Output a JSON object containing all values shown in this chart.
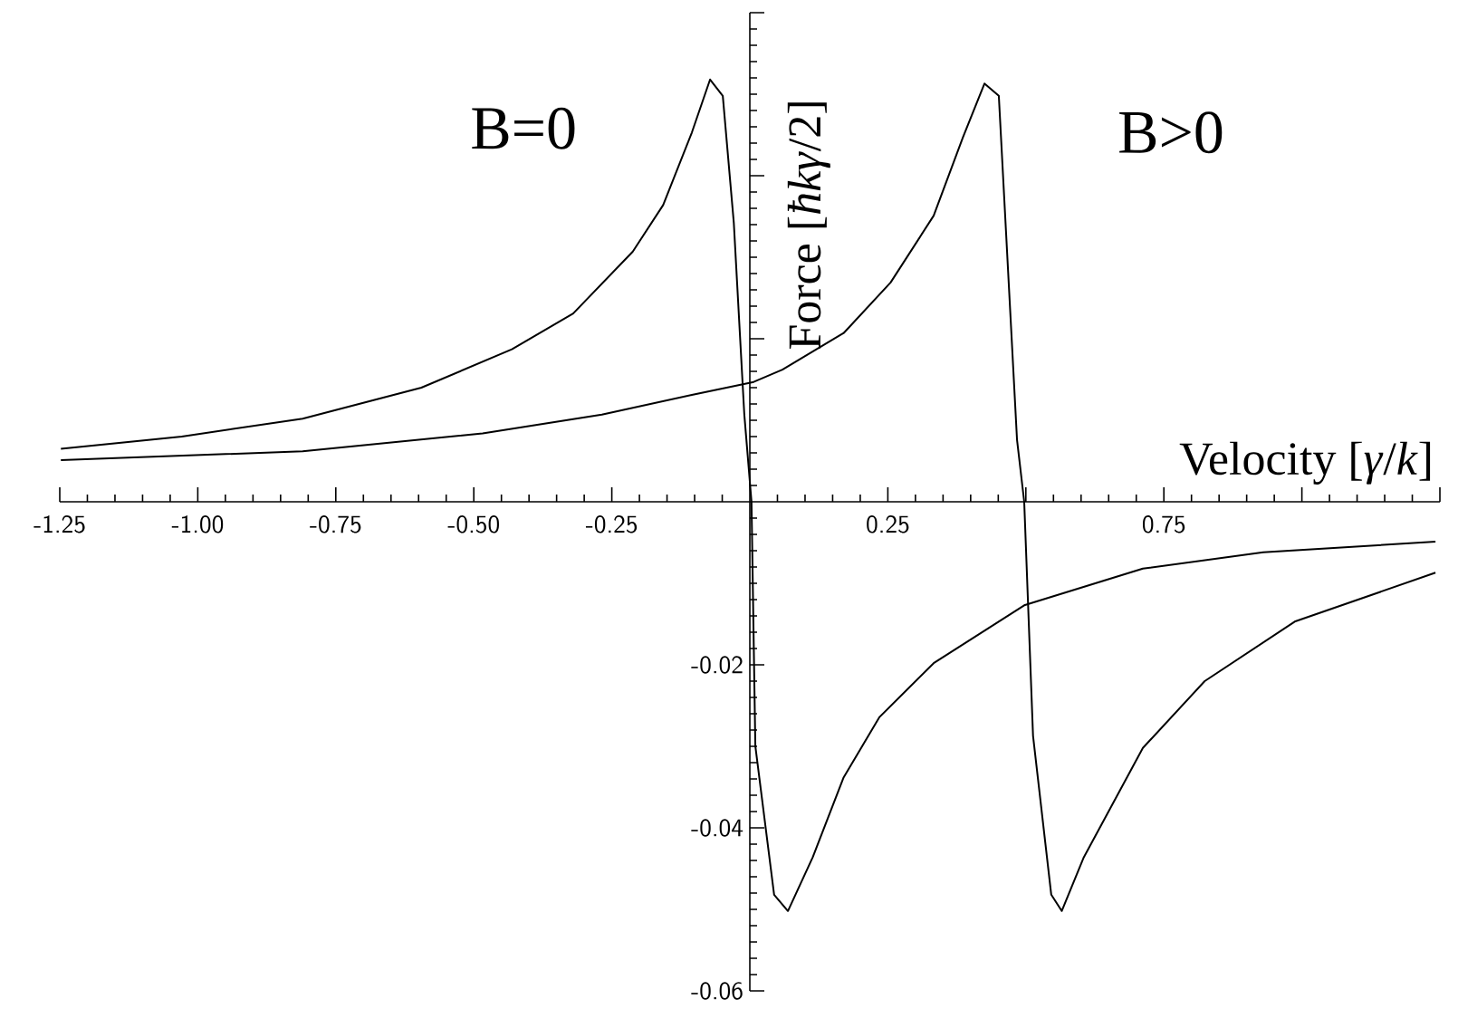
{
  "chart_data": {
    "type": "line",
    "xlabel": "Velocity [*γ*/*k*]",
    "ylabel": "Force [*ħkγ*/2]",
    "xlim": [
      -1.25,
      1.25
    ],
    "ylim": [
      -0.06,
      0.06
    ],
    "xticks": [
      -1.25,
      {
        "value": -1,
        "label": "-1.00"
      },
      -0.75,
      {
        "value": -0.5,
        "label": "-0.50"
      },
      -0.25,
      {
        "value": 0,
        "label": null
      },
      0.25,
      {
        "value": 0.5,
        "label": null
      },
      0.75,
      {
        "value": 1,
        "label": null
      },
      {
        "value": 1.25,
        "label": null
      }
    ],
    "yticks": [
      -0.06,
      -0.04,
      -0.02,
      {
        "value": 0,
        "label": null
      },
      {
        "value": 0.02,
        "label": null
      },
      {
        "value": 0.04,
        "label": null
      },
      {
        "value": 0.06,
        "label": null
      }
    ],
    "series": [
      {
        "name": "B=0",
        "color": "#000000",
        "x": [
          -1.248,
          -1.029,
          -0.81,
          -0.595,
          -0.431,
          -0.32,
          -0.212,
          -0.157,
          -0.105,
          -0.072,
          -0.049,
          -0.029,
          -0.01,
          0.003,
          0.01,
          0.044,
          0.069,
          0.114,
          0.17,
          0.235,
          0.333,
          0.497,
          0.712,
          0.93,
          1.242
        ],
        "values": [
          0.0065,
          0.008,
          0.0102,
          0.014,
          0.0187,
          0.0231,
          0.0307,
          0.0364,
          0.0453,
          0.0518,
          0.0498,
          0.0342,
          0.0107,
          0.0,
          -0.03,
          -0.0482,
          -0.0502,
          -0.0436,
          -0.0338,
          -0.0264,
          -0.0198,
          -0.0127,
          -0.0082,
          -0.0062,
          -0.0049
        ]
      },
      {
        "name": "B>0",
        "color": "#000000",
        "x": [
          -1.248,
          -0.81,
          -0.484,
          -0.268,
          -0.105,
          0.007,
          0.059,
          0.17,
          0.255,
          0.333,
          0.386,
          0.425,
          0.451,
          0.484,
          0.497,
          0.513,
          0.546,
          0.565,
          0.605,
          0.712,
          0.824,
          0.987,
          1.242
        ],
        "values": [
          0.0051,
          0.0062,
          0.0084,
          0.0107,
          0.0131,
          0.0147,
          0.0162,
          0.0207,
          0.0269,
          0.0351,
          0.0447,
          0.0513,
          0.0498,
          0.0076,
          0.0,
          -0.0287,
          -0.0482,
          -0.0502,
          -0.0436,
          -0.0302,
          -0.022,
          -0.0147,
          -0.0087
        ]
      }
    ]
  }
}
